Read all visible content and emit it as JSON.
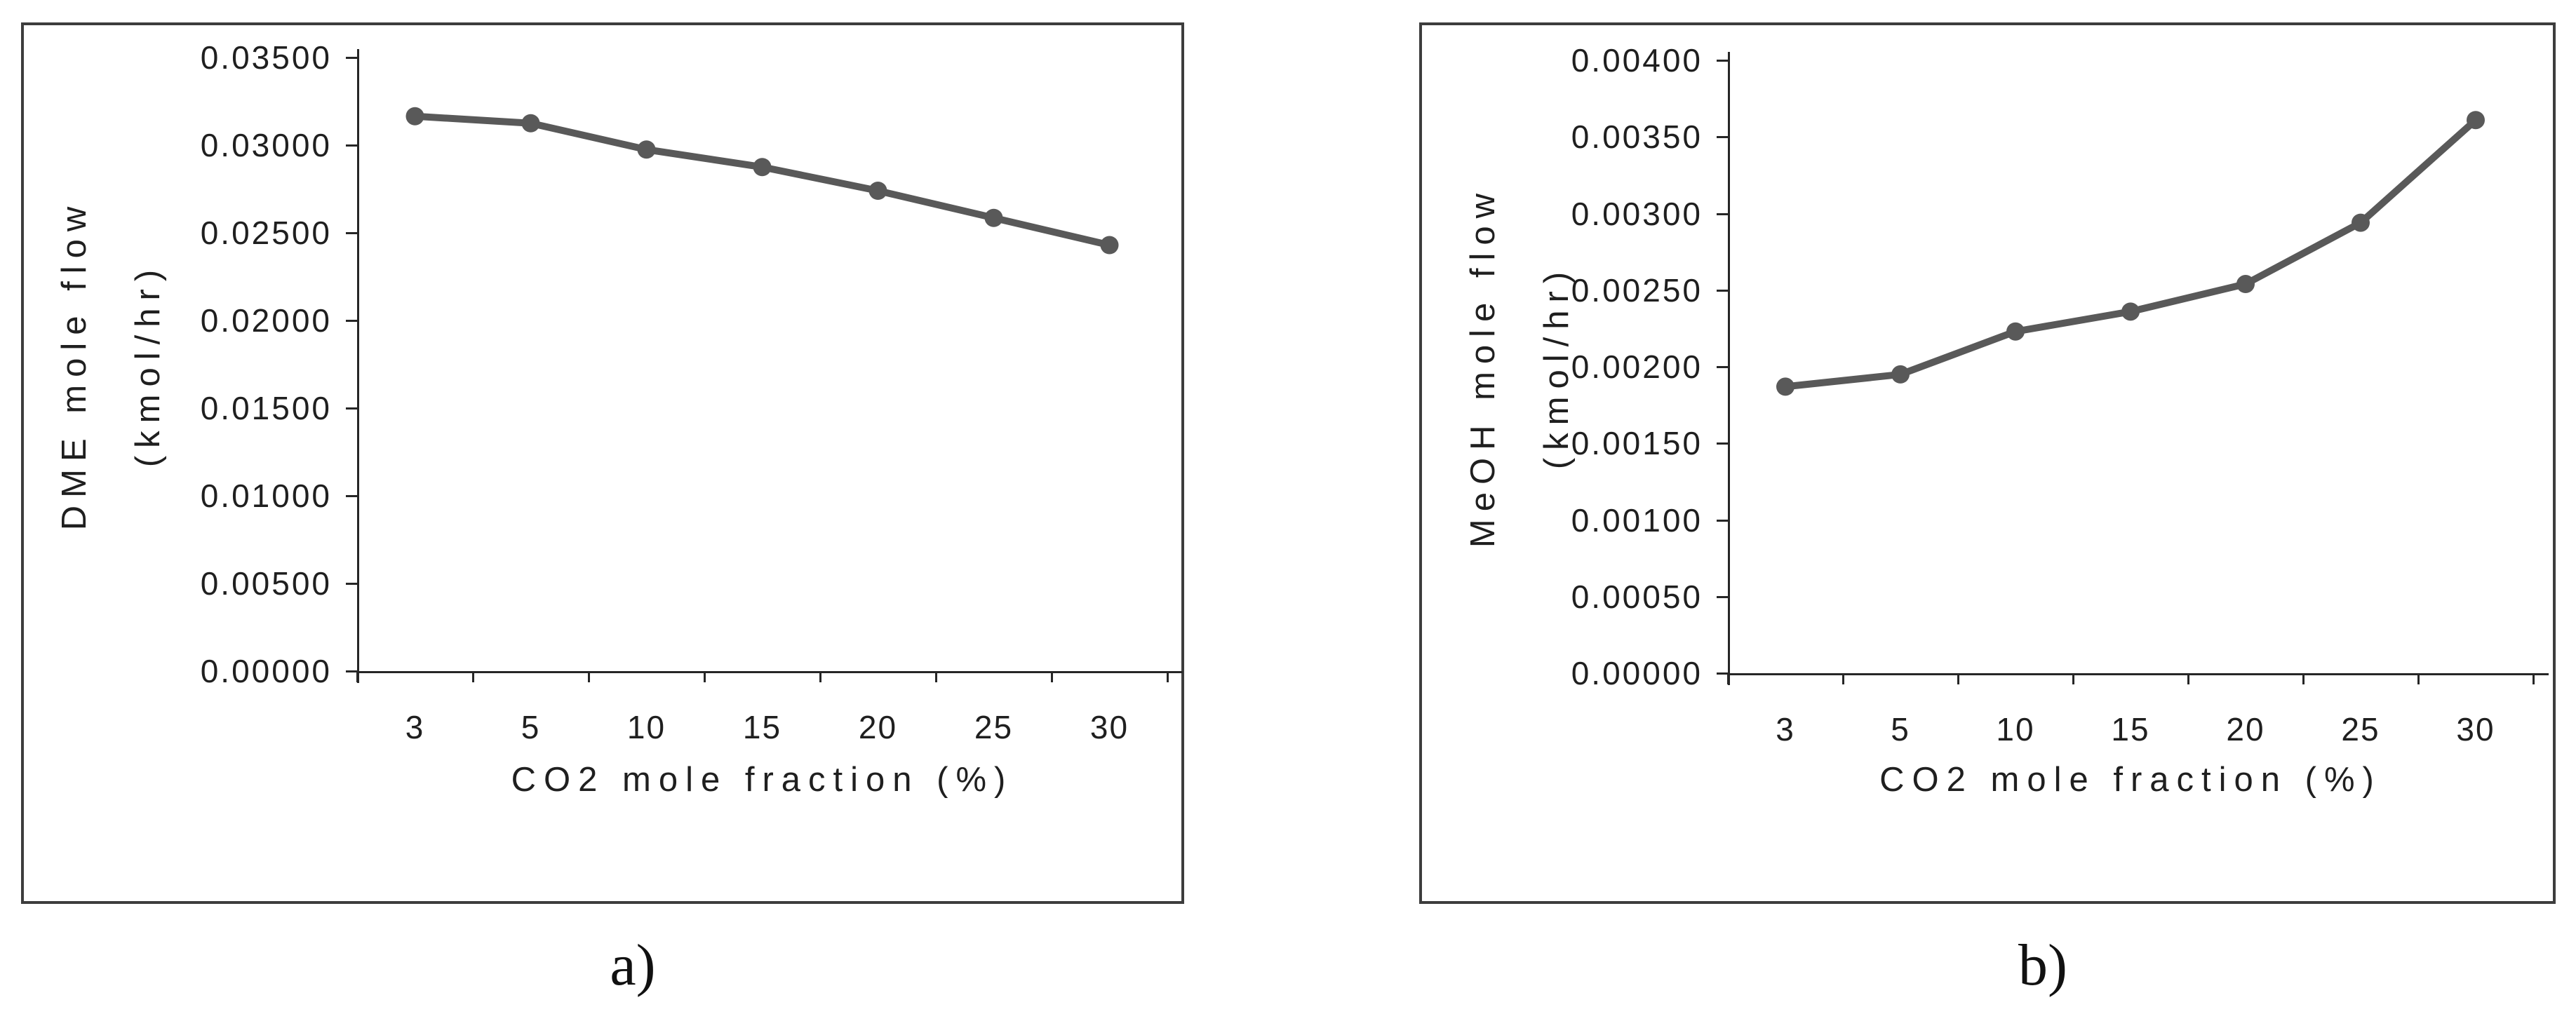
{
  "chart_data": [
    {
      "id": "a",
      "type": "line",
      "caption": "a)",
      "categories": [
        "3",
        "5",
        "10",
        "15",
        "20",
        "25",
        "30"
      ],
      "values": [
        0.03165,
        0.03125,
        0.02975,
        0.02875,
        0.0274,
        0.02585,
        0.0243
      ],
      "xlabel": "CO2 mole fraction (%)",
      "ylabel": "DME mole flow (kmol/hr)",
      "ylabel_lines": [
        "DME mole flow",
        "(kmol/hr)"
      ],
      "ylim": [
        0.0,
        0.035
      ],
      "ytick_step": 0.005,
      "ytick_labels_top_to_bottom": [
        "0.03500",
        "0.03000",
        "0.02500",
        "0.02000",
        "0.01500",
        "0.01000",
        "0.00500",
        "0.00000"
      ],
      "grid": false,
      "legend": "none",
      "line_color": "#595959",
      "marker": "circle"
    },
    {
      "id": "b",
      "type": "line",
      "caption": "b)",
      "categories": [
        "3",
        "5",
        "10",
        "15",
        "20",
        "25",
        "30"
      ],
      "values": [
        0.00187,
        0.00195,
        0.00223,
        0.00236,
        0.00254,
        0.00294,
        0.00361
      ],
      "xlabel": "CO2 mole fraction (%)",
      "ylabel": "MeOH mole flow (kmol/hr)",
      "ylabel_lines": [
        "MeOH mole flow",
        "(kmol/hr)"
      ],
      "ylim": [
        0.0,
        0.004
      ],
      "ytick_step": 0.0005,
      "ytick_labels_top_to_bottom": [
        "0.00400",
        "0.00350",
        "0.00300",
        "0.00250",
        "0.00200",
        "0.00150",
        "0.00100",
        "0.00050",
        "0.00000"
      ],
      "grid": false,
      "legend": "none",
      "line_color": "#595959",
      "marker": "circle"
    }
  ]
}
